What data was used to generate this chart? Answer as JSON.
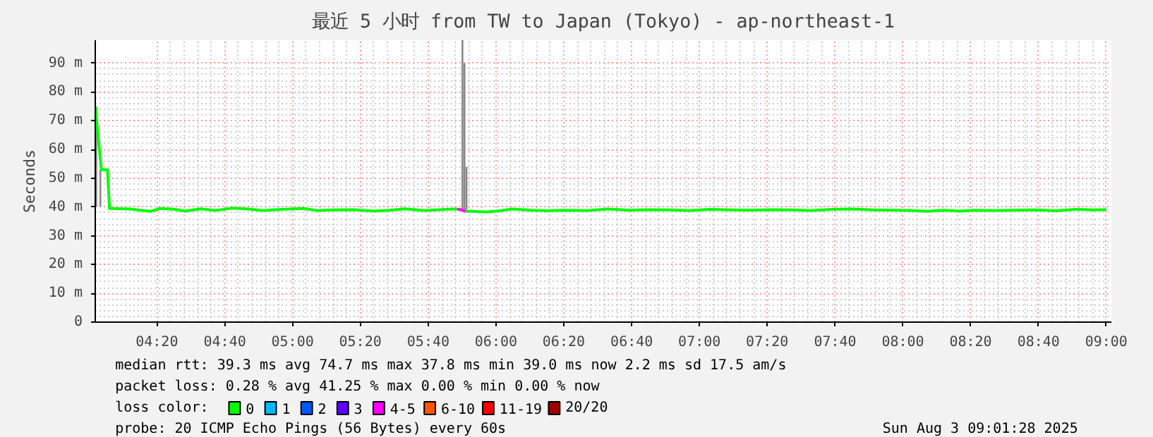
{
  "chart_data": {
    "type": "line",
    "title": "最近 5 小时 from TW to Japan (Tokyo) - ap-northeast-1",
    "ylabel": "Seconds",
    "xlim": [
      4.03,
      9.025
    ],
    "ylim": [
      0,
      98
    ],
    "xticks": [
      {
        "value": 4.333,
        "label": "04:20"
      },
      {
        "value": 4.667,
        "label": "04:40"
      },
      {
        "value": 5,
        "label": "05:00"
      },
      {
        "value": 5.333,
        "label": "05:20"
      },
      {
        "value": 5.667,
        "label": "05:40"
      },
      {
        "value": 6,
        "label": "06:00"
      },
      {
        "value": 6.333,
        "label": "06:20"
      },
      {
        "value": 6.667,
        "label": "06:40"
      },
      {
        "value": 7,
        "label": "07:00"
      },
      {
        "value": 7.333,
        "label": "07:20"
      },
      {
        "value": 7.667,
        "label": "07:40"
      },
      {
        "value": 8,
        "label": "08:00"
      },
      {
        "value": 8.333,
        "label": "08:20"
      },
      {
        "value": 8.667,
        "label": "08:40"
      },
      {
        "value": 9,
        "label": "09:00"
      }
    ],
    "yticks": [
      0,
      {
        "value": 10,
        "label": "10 m"
      },
      {
        "value": 20,
        "label": "20 m"
      },
      {
        "value": 30,
        "label": "30 m"
      },
      {
        "value": 40,
        "label": "40 m"
      },
      {
        "value": 50,
        "label": "50 m"
      },
      {
        "value": 60,
        "label": "60 m"
      },
      {
        "value": 70,
        "label": "70 m"
      },
      {
        "value": 80,
        "label": "80 m"
      },
      {
        "value": 90,
        "label": "90 m"
      }
    ],
    "grid": true,
    "legend": "bottom",
    "legend_title": "loss color:",
    "series": [
      {
        "type": "bar",
        "color": "#888888",
        "x": [
          4.035,
          4.055,
          5.835,
          5.845,
          5.855
        ],
        "base": [
          40,
          40,
          39,
          39,
          39
        ],
        "values": [
          35,
          13,
          59,
          51,
          15
        ]
      },
      {
        "name": "0",
        "color": "#00ff00",
        "x": [
          4.03,
          4.06,
          4.09,
          4.1,
          4.2,
          4.25,
          4.3,
          4.35,
          4.42,
          4.47,
          4.55,
          4.62,
          4.7,
          4.78,
          4.85,
          4.95,
          5.05,
          5.12,
          5.2,
          5.3,
          5.4,
          5.48,
          5.55,
          5.65,
          5.75,
          5.81,
          5.83,
          5.85,
          5.88,
          5.95,
          6.02,
          6.08,
          6.17,
          6.25,
          6.33,
          6.45,
          6.55,
          6.65,
          6.75,
          6.85,
          6.95,
          7.05,
          7.15,
          7.25,
          7.35,
          7.45,
          7.55,
          7.65,
          7.75,
          7.85,
          7.95,
          8.05,
          8.12,
          8.2,
          8.28,
          8.35,
          8.45,
          8.55,
          8.65,
          8.75,
          8.85,
          8.93,
          9.0
        ],
        "values": [
          75,
          53,
          53,
          39.5,
          39.3,
          38.9,
          38.5,
          39.5,
          39.2,
          38.6,
          39.4,
          38.8,
          39.6,
          39.3,
          38.8,
          39.2,
          39.5,
          38.8,
          39.0,
          39.1,
          38.6,
          38.9,
          39.4,
          38.8,
          39.2,
          39.3,
          null,
          38.5,
          38.5,
          38.3,
          38.7,
          39.3,
          38.9,
          38.7,
          38.9,
          38.8,
          39.3,
          38.9,
          39.1,
          39.0,
          38.8,
          39.2,
          39.0,
          38.9,
          39.1,
          39.0,
          38.8,
          39.2,
          39.3,
          39.0,
          38.9,
          38.8,
          38.5,
          38.9,
          38.6,
          38.9,
          38.8,
          38.9,
          39.0,
          38.7,
          39.2,
          39.0,
          39.1
        ]
      },
      {
        "name": "1",
        "color": "#00b8ff"
      },
      {
        "name": "2",
        "color": "#0059ff"
      },
      {
        "name": "3",
        "color": "#5e00ff"
      },
      {
        "name": "4-5",
        "color": "#ff00ff",
        "x": [
          5.81,
          5.83,
          5.85
        ],
        "values": [
          39.3,
          39.0,
          38.5
        ]
      },
      {
        "name": "6-10",
        "color": "#ff5500"
      },
      {
        "name": "11-19",
        "color": "#ff0000"
      },
      {
        "name": "20/20",
        "color": "#a10000"
      }
    ],
    "annotations": [
      "median rtt:  39.3 ms avg  74.7 ms max  37.8 ms min  39.0 ms now  2.2 ms sd  17.5   am/s",
      "packet loss: 0.28 % avg  41.25 % max  0.00 % min  0.00 % now",
      "probe:       20 ICMP Echo Pings (56 Bytes) every 60s",
      "Sun Aug  3 09:01:28 2025"
    ]
  }
}
